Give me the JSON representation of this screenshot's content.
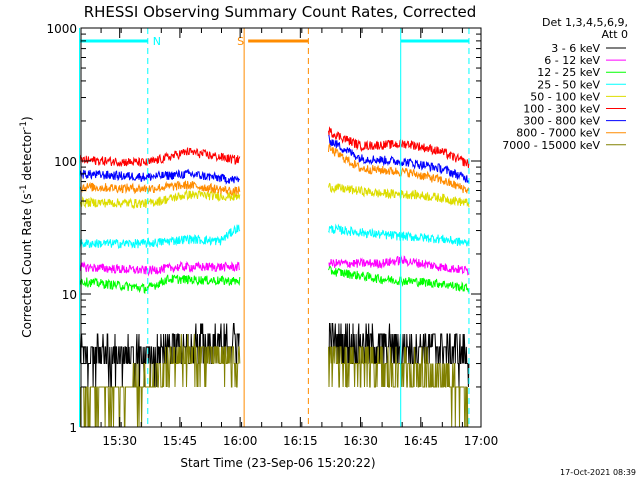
{
  "chart_data": {
    "type": "line",
    "title": "RHESSI Observing Summary Count Rates, Corrected",
    "xlabel": "Start Time (23-Sep-06 15:20:22)",
    "ylabel_prefix": "Corrected Count Rate (s",
    "ylabel_sup1": "-1",
    "ylabel_mid": " detector",
    "ylabel_sup2": "-1",
    "ylabel_suffix": ")",
    "timestamp": "17-Oct-2021 08:39",
    "yscale": "log",
    "xlim": [
      "15:20:22",
      "17:00:00"
    ],
    "ylim": [
      1,
      1000
    ],
    "x_ticks": [
      "15:30",
      "15:45",
      "16:00",
      "16:15",
      "16:30",
      "16:45",
      "17:00"
    ],
    "y_ticks": [
      "1",
      "10",
      "100",
      "1000"
    ],
    "legend": {
      "header_line1": "Det 1,3,4,5,6,9,",
      "header_line2": "Att 0",
      "placement": "right"
    },
    "data_gap": [
      "16:00",
      "16:22"
    ],
    "series": [
      {
        "name": "3 - 6 keV",
        "color": "#000000",
        "points": [
          [
            "15:20",
            3.5
          ],
          [
            "15:37",
            3.5
          ],
          [
            "15:45",
            4.2
          ],
          [
            "15:59",
            4.5
          ],
          [
            "16:22",
            4.5
          ],
          [
            "16:35",
            4.2
          ],
          [
            "16:50",
            4.0
          ],
          [
            "16:57",
            3.5
          ]
        ]
      },
      {
        "name": "6 - 12 keV",
        "color": "#ff00ff",
        "points": [
          [
            "15:20",
            16
          ],
          [
            "15:37",
            15
          ],
          [
            "15:45",
            16
          ],
          [
            "15:59",
            16
          ],
          [
            "16:22",
            17
          ],
          [
            "16:35",
            17
          ],
          [
            "16:40",
            18
          ],
          [
            "16:50",
            16
          ],
          [
            "16:57",
            15
          ]
        ]
      },
      {
        "name": "12 - 25 keV",
        "color": "#00ff00",
        "points": [
          [
            "15:20",
            12.5
          ],
          [
            "15:37",
            11
          ],
          [
            "15:42",
            13
          ],
          [
            "15:59",
            12.5
          ],
          [
            "16:22",
            15
          ],
          [
            "16:35",
            13
          ],
          [
            "16:50",
            12
          ],
          [
            "16:57",
            11
          ]
        ]
      },
      {
        "name": "25 - 50 keV",
        "color": "#00ffff",
        "points": [
          [
            "15:20",
            24
          ],
          [
            "15:37",
            24
          ],
          [
            "15:47",
            26
          ],
          [
            "15:55",
            25
          ],
          [
            "15:59",
            31
          ],
          [
            "16:22",
            31
          ],
          [
            "16:35",
            28
          ],
          [
            "16:50",
            26
          ],
          [
            "16:57",
            24
          ]
        ]
      },
      {
        "name": "50 - 100 keV",
        "color": "#dddd00",
        "points": [
          [
            "15:20",
            49
          ],
          [
            "15:37",
            48
          ],
          [
            "15:47",
            56
          ],
          [
            "15:59",
            54
          ],
          [
            "16:22",
            64
          ],
          [
            "16:35",
            57
          ],
          [
            "16:43",
            56
          ],
          [
            "16:50",
            53
          ],
          [
            "16:57",
            48
          ]
        ]
      },
      {
        "name": "100 - 300 keV",
        "color": "#ff0000",
        "points": [
          [
            "15:20",
            102
          ],
          [
            "15:37",
            97
          ],
          [
            "15:47",
            118
          ],
          [
            "15:59",
            102
          ],
          [
            "16:22",
            168
          ],
          [
            "16:30",
            130
          ],
          [
            "16:42",
            135
          ],
          [
            "16:50",
            118
          ],
          [
            "16:57",
            95
          ]
        ]
      },
      {
        "name": "300 - 800 keV",
        "color": "#0000ff",
        "points": [
          [
            "15:20",
            80
          ],
          [
            "15:37",
            76
          ],
          [
            "15:47",
            80
          ],
          [
            "15:59",
            72
          ],
          [
            "16:22",
            145
          ],
          [
            "16:30",
            105
          ],
          [
            "16:42",
            98
          ],
          [
            "16:50",
            88
          ],
          [
            "16:57",
            73
          ]
        ]
      },
      {
        "name": "800 - 7000 keV",
        "color": "#ff8c00",
        "points": [
          [
            "15:20",
            64
          ],
          [
            "15:37",
            62
          ],
          [
            "15:47",
            66
          ],
          [
            "15:59",
            59
          ],
          [
            "16:22",
            125
          ],
          [
            "16:30",
            88
          ],
          [
            "16:42",
            82
          ],
          [
            "16:50",
            72
          ],
          [
            "16:57",
            60
          ]
        ]
      },
      {
        "name": "7000 - 15000 keV",
        "color": "#808000",
        "points": [
          [
            "15:20",
            1.6
          ],
          [
            "15:37",
            2.0
          ],
          [
            "15:45",
            3.5
          ],
          [
            "15:59",
            3.2
          ],
          [
            "16:22",
            3.2
          ],
          [
            "16:35",
            2.8
          ],
          [
            "16:50",
            2.6
          ],
          [
            "16:57",
            1.5
          ]
        ]
      }
    ],
    "flag_labels": [
      {
        "text": "N",
        "color": "#00ffff"
      },
      {
        "text": "S",
        "color": "#ff8c00"
      }
    ],
    "flag_bars": [
      {
        "flag": "N",
        "color": "#00ffff",
        "start": "15:20",
        "end": "15:37",
        "label": "N"
      },
      {
        "flag": "N",
        "color": "#00ffff",
        "start": "16:40",
        "end": "16:57",
        "label": ""
      },
      {
        "flag": "S",
        "color": "#ff8c00",
        "start": "16:02",
        "end": "16:17",
        "label": "S"
      }
    ],
    "flag_lines": [
      {
        "color": "#00ffff",
        "time": "15:20",
        "style": "solid"
      },
      {
        "color": "#00ffff",
        "time": "15:37",
        "style": "dashed"
      },
      {
        "color": "#ff8c00",
        "time": "16:01",
        "style": "solid"
      },
      {
        "color": "#ff8c00",
        "time": "16:17",
        "style": "dashed"
      },
      {
        "color": "#00ffff",
        "time": "16:40",
        "style": "solid"
      },
      {
        "color": "#00ffff",
        "time": "16:57",
        "style": "dashed"
      }
    ]
  }
}
